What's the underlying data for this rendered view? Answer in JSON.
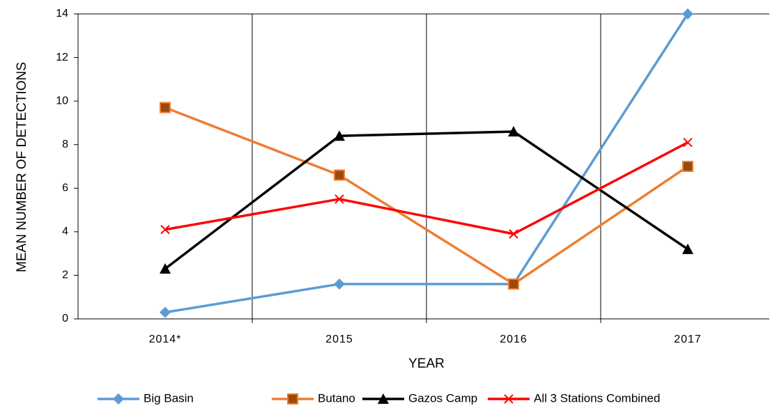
{
  "chart_data": {
    "type": "line",
    "categories": [
      "2014*",
      "2015",
      "2016",
      "2017"
    ],
    "ylabel": "MEAN NUMBER OF DETECTIONS",
    "xlabel": "YEAR",
    "ylim": [
      0,
      14
    ],
    "yticks": [
      0,
      2,
      4,
      6,
      8,
      10,
      12,
      14
    ],
    "legend": "bottom",
    "series": [
      {
        "name": "Big Basin",
        "color": "#5b9bd5",
        "marker": "diamond",
        "values": [
          0.3,
          1.6,
          1.6,
          14
        ]
      },
      {
        "name": "Butano",
        "color": "#ed7d31",
        "marker": "square",
        "values": [
          9.7,
          6.6,
          1.6,
          7.0
        ]
      },
      {
        "name": "Gazos Camp",
        "color": "#000000",
        "marker": "triangle",
        "values": [
          2.3,
          8.4,
          8.6,
          3.2
        ]
      },
      {
        "name": "All 3 Stations Combined",
        "color": "#ff0000",
        "marker": "x",
        "values": [
          4.1,
          5.5,
          3.9,
          8.1
        ]
      }
    ]
  }
}
